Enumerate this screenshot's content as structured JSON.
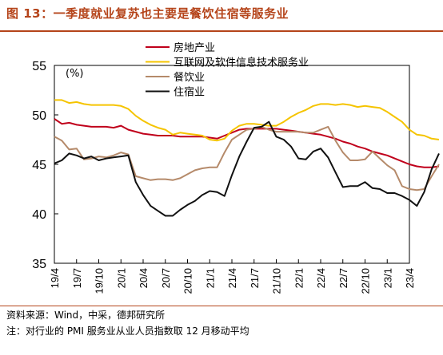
{
  "header": {
    "title": "图 13：一季度就业复苏也主要是餐饮住宿等服务业"
  },
  "footer": {
    "source": "资料来源：Wind，中采，德邦研究所",
    "note": "注：对行业的 PMI 服务业从业人员指数取 12 月移动平均"
  },
  "chart_data": {
    "type": "line",
    "unit_label": "(%)",
    "ylim": [
      35,
      55
    ],
    "yticks": [
      35,
      40,
      45,
      50,
      55
    ],
    "x_start": "2019-04",
    "x_end": "2023-04",
    "xtick_labels": [
      "19/4",
      "19/7",
      "19/10",
      "20/1",
      "20/4",
      "20/7",
      "20/10",
      "21/1",
      "21/4",
      "21/7",
      "21/10",
      "22/1",
      "22/4",
      "22/7",
      "22/10",
      "23/1",
      "23/4"
    ],
    "legend_position": "top-center",
    "grid": false,
    "series": [
      {
        "name": "房地产业",
        "color": "#c0001b",
        "values": [
          49.6,
          49.1,
          49.2,
          49.0,
          48.9,
          48.8,
          48.8,
          48.8,
          48.7,
          48.9,
          48.5,
          48.3,
          48.1,
          48.0,
          47.9,
          47.9,
          47.9,
          47.8,
          47.8,
          47.8,
          47.8,
          47.7,
          47.6,
          47.9,
          48.2,
          48.5,
          48.6,
          48.6,
          48.6,
          48.6,
          48.6,
          48.5,
          48.4,
          48.3,
          48.2,
          48.1,
          48.0,
          47.8,
          47.6,
          47.3,
          47.1,
          46.8,
          46.6,
          46.3,
          46.1,
          45.9,
          45.6,
          45.3,
          45.0,
          44.8,
          44.7,
          44.7,
          44.8
        ]
      },
      {
        "name": "互联网及软件信息技术服务业",
        "color": "#f5c400",
        "values": [
          51.5,
          51.5,
          51.2,
          51.3,
          51.1,
          51.0,
          51.0,
          51.0,
          51.0,
          50.9,
          50.6,
          49.9,
          49.4,
          49.0,
          48.7,
          48.5,
          48.0,
          48.2,
          48.1,
          48.0,
          47.9,
          47.5,
          47.4,
          47.6,
          48.4,
          48.9,
          49.1,
          49.1,
          49.0,
          48.9,
          48.9,
          49.3,
          49.8,
          50.2,
          50.5,
          50.9,
          51.1,
          51.1,
          51.0,
          51.1,
          51.0,
          50.8,
          50.9,
          50.8,
          50.7,
          50.3,
          49.8,
          49.3,
          48.5,
          48.0,
          47.9,
          47.6,
          47.5
        ]
      },
      {
        "name": "餐饮业",
        "color": "#b58a6a",
        "values": [
          47.8,
          47.4,
          46.5,
          46.6,
          45.5,
          45.6,
          45.8,
          45.7,
          45.9,
          46.2,
          46.0,
          43.8,
          43.6,
          43.4,
          43.5,
          43.5,
          43.4,
          43.6,
          44.0,
          44.4,
          44.6,
          44.7,
          44.7,
          46.2,
          47.5,
          48.0,
          48.5,
          48.6,
          48.8,
          48.5,
          48.3,
          48.3,
          48.3,
          48.3,
          48.2,
          48.2,
          48.5,
          48.8,
          47.4,
          46.2,
          45.4,
          45.4,
          45.5,
          46.3,
          45.6,
          44.9,
          44.4,
          42.8,
          42.5,
          42.4,
          42.5,
          43.8,
          45.0
        ]
      },
      {
        "name": "住宿业",
        "color": "#111111",
        "values": [
          45.1,
          45.4,
          46.1,
          45.9,
          45.6,
          45.8,
          45.4,
          45.6,
          45.7,
          45.8,
          45.9,
          43.2,
          41.9,
          40.8,
          40.3,
          39.8,
          39.8,
          40.4,
          40.9,
          41.3,
          41.9,
          42.3,
          42.2,
          41.8,
          43.9,
          45.8,
          47.3,
          48.7,
          48.8,
          49.3,
          47.8,
          47.5,
          46.8,
          45.6,
          45.5,
          46.3,
          46.6,
          45.7,
          44.2,
          42.7,
          42.8,
          42.8,
          43.2,
          42.6,
          42.5,
          42.1,
          42.1,
          41.8,
          41.4,
          40.8,
          42.2,
          44.5,
          46.1
        ]
      }
    ]
  }
}
